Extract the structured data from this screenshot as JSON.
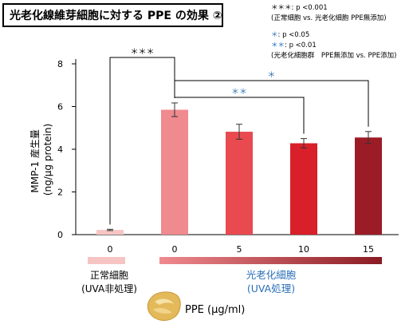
{
  "title": "光老化線維芽細胞に対する PPE の効果 ②",
  "legend": {
    "sig3_marker": "＊＊＊",
    "sig3_text": ": p <0.001",
    "sig3_note": "(正常細胞 vs. 光老化細胞 PPE無添加)",
    "sig1_marker": "＊",
    "sig1_text": ": p <0.05",
    "sig2_marker": "＊＊",
    "sig2_text": ": p <0.01",
    "sig12_note": "(光老化細胞群　PPE無添加 vs. PPE添加)"
  },
  "group_labels": {
    "normal_line1": "正常細胞",
    "normal_line2": "(UVA非処理)",
    "photoaged_line1": "光老化細胞",
    "photoaged_line2": "(UVA処理)"
  },
  "ppe_label": "PPE (μg/ml)",
  "colors": {
    "normal_bar": "#f7c4c4",
    "significance_blue": "#2a6fb8",
    "gradient_start": "#f08a8f",
    "gradient_end": "#8a1a22"
  },
  "chart_data": {
    "type": "bar",
    "ylabel": "MMP-1 産生量\n(ng/μg protein)",
    "ylim": [
      0,
      8
    ],
    "yticks": [
      0,
      2,
      4,
      6,
      8
    ],
    "categories": [
      "0",
      "0",
      "5",
      "10",
      "15"
    ],
    "values": [
      0.22,
      5.85,
      4.82,
      4.28,
      4.55
    ],
    "errors": [
      0.03,
      0.32,
      0.35,
      0.22,
      0.28
    ],
    "bar_colors": [
      "#f7c4c4",
      "#ef8a8f",
      "#e84a4f",
      "#d81f2a",
      "#9b1c26"
    ],
    "significance": [
      {
        "from": 0,
        "to": 1,
        "label": "＊＊＊",
        "color": "#000000"
      },
      {
        "from": 1,
        "to": 3,
        "label": "＊＊",
        "color": "#2a6fb8"
      },
      {
        "from": 1,
        "to": 4,
        "label": "＊",
        "color": "#2a6fb8"
      }
    ]
  }
}
